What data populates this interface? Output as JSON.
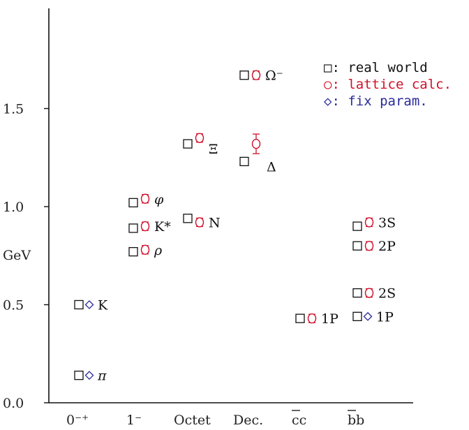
{
  "chart_data": {
    "type": "scatter",
    "ylabel": "GeV",
    "ylim": [
      0,
      2.0
    ],
    "yticks": [
      "0.0",
      "0.5",
      "1.0",
      "1.5"
    ],
    "categories": [
      "0⁻⁺",
      "1⁻",
      "Octet",
      "Dec.",
      "cc",
      "bb"
    ],
    "legend": {
      "placement": "top-right",
      "entries": [
        {
          "key": "real",
          "label": "□: real world",
          "color": "#111111"
        },
        {
          "key": "lattice",
          "label": "○: lattice calc.",
          "color": "#d0102a"
        },
        {
          "key": "fix",
          "label": "◇: fix param.",
          "color": "#2a2a9a"
        }
      ]
    },
    "states": [
      {
        "name": "π",
        "category": "0⁻⁺",
        "real": 0.14,
        "fix": 0.14
      },
      {
        "name": "K",
        "category": "0⁻⁺",
        "real": 0.5,
        "fix": 0.5
      },
      {
        "name": "ρ",
        "category": "1⁻",
        "real": 0.77,
        "lattice": 0.78,
        "lattice_err": 0.01
      },
      {
        "name": "K*",
        "category": "1⁻",
        "real": 0.89,
        "lattice": 0.9,
        "lattice_err": 0.01
      },
      {
        "name": "φ",
        "category": "1⁻",
        "real": 1.02,
        "lattice": 1.04,
        "lattice_err": 0.01
      },
      {
        "name": "N",
        "category": "Octet",
        "real": 0.94,
        "lattice": 0.92,
        "lattice_err": 0.02
      },
      {
        "name": "Ξ",
        "category": "Octet",
        "real": 1.32,
        "lattice": 1.35,
        "lattice_err": 0.02
      },
      {
        "name": "Δ",
        "category": "Dec.",
        "real": 1.23,
        "lattice": 1.32,
        "lattice_err": 0.05
      },
      {
        "name": "Ω⁻",
        "category": "Dec.",
        "real": 1.67,
        "lattice": 1.67,
        "lattice_err": 0.01
      },
      {
        "name": "1P",
        "category": "cc",
        "real": 0.43,
        "lattice": 0.43,
        "lattice_err": 0.01
      },
      {
        "name": "1P",
        "category": "bb",
        "real": 0.44,
        "fix": 0.44
      },
      {
        "name": "2S",
        "category": "bb",
        "real": 0.56,
        "lattice": 0.56,
        "lattice_err": 0.01
      },
      {
        "name": "2P",
        "category": "bb",
        "real": 0.8,
        "lattice": 0.8,
        "lattice_err": 0.01
      },
      {
        "name": "3S",
        "category": "bb",
        "real": 0.9,
        "lattice": 0.92,
        "lattice_err": 0.01
      }
    ]
  }
}
